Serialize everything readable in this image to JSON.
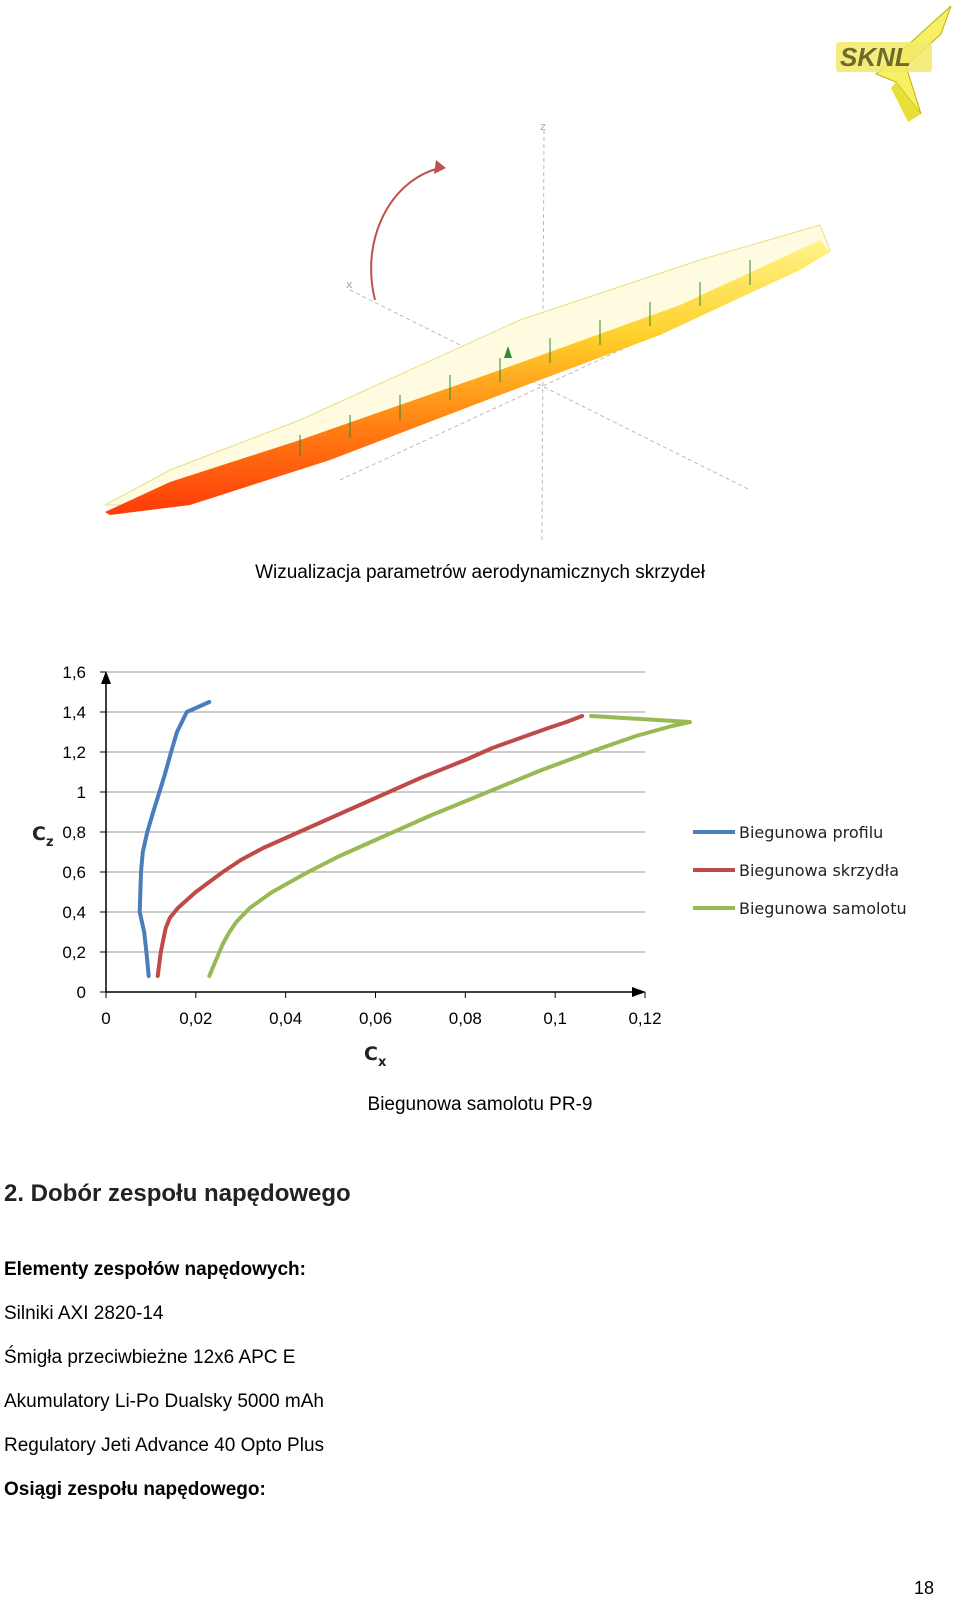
{
  "logo": {
    "text": "SKNL"
  },
  "figure_caption": "Wizualizacja parametrów aerodynamicznych skrzydeł",
  "chart_caption": "Biegunowa samolotu PR-9",
  "chart_data": {
    "type": "line",
    "title": "Biegunowa samolotu PR-9",
    "xlabel": "C",
    "xlabel_sub": "x",
    "ylabel": "C",
    "ylabel_sub": "z",
    "xlim": [
      0,
      0.12
    ],
    "ylim": [
      0,
      1.6
    ],
    "xticks": [
      0,
      0.02,
      0.04,
      0.06,
      0.08,
      0.1,
      0.12
    ],
    "xtick_labels": [
      "0",
      "0,02",
      "0,04",
      "0,06",
      "0,08",
      "0,1",
      "0,12"
    ],
    "yticks": [
      0,
      0.2,
      0.4,
      0.6,
      0.8,
      1.0,
      1.2,
      1.4,
      1.6
    ],
    "ytick_labels": [
      "0",
      "0,2",
      "0,4",
      "0,6",
      "0,8",
      "1",
      "1,2",
      "1,4",
      "1,6"
    ],
    "grid": true,
    "legend_position": "right",
    "series": [
      {
        "name": "Biegunowa profilu",
        "color": "#4a7ebb",
        "points": [
          [
            0.0095,
            0.08
          ],
          [
            0.009,
            0.2
          ],
          [
            0.0085,
            0.3
          ],
          [
            0.0075,
            0.4
          ],
          [
            0.0078,
            0.6
          ],
          [
            0.0082,
            0.7
          ],
          [
            0.0092,
            0.8
          ],
          [
            0.0105,
            0.9
          ],
          [
            0.013,
            1.08
          ],
          [
            0.0145,
            1.2
          ],
          [
            0.0158,
            1.3
          ],
          [
            0.018,
            1.4
          ],
          [
            0.023,
            1.45
          ]
        ]
      },
      {
        "name": "Biegunowa skrzydła",
        "color": "#be4b48",
        "points": [
          [
            0.0115,
            0.08
          ],
          [
            0.0122,
            0.2
          ],
          [
            0.0133,
            0.32
          ],
          [
            0.0142,
            0.37
          ],
          [
            0.016,
            0.42
          ],
          [
            0.02,
            0.5
          ],
          [
            0.026,
            0.6
          ],
          [
            0.03,
            0.66
          ],
          [
            0.035,
            0.72
          ],
          [
            0.045,
            0.82
          ],
          [
            0.06,
            0.97
          ],
          [
            0.07,
            1.07
          ],
          [
            0.08,
            1.16
          ],
          [
            0.086,
            1.22
          ],
          [
            0.0985,
            1.32
          ],
          [
            0.1025,
            1.35
          ],
          [
            0.106,
            1.38
          ]
        ]
      },
      {
        "name": "Biegunowa samolotu",
        "color": "#98b954",
        "points": [
          [
            0.023,
            0.08
          ],
          [
            0.0245,
            0.16
          ],
          [
            0.026,
            0.24
          ],
          [
            0.0275,
            0.3
          ],
          [
            0.029,
            0.35
          ],
          [
            0.032,
            0.42
          ],
          [
            0.037,
            0.5
          ],
          [
            0.045,
            0.6
          ],
          [
            0.052,
            0.68
          ],
          [
            0.06,
            0.76
          ],
          [
            0.072,
            0.88
          ],
          [
            0.085,
            1.0
          ],
          [
            0.097,
            1.11
          ],
          [
            0.109,
            1.21
          ],
          [
            0.118,
            1.28
          ],
          [
            0.126,
            1.33
          ],
          [
            0.13,
            1.35
          ],
          [
            0.108,
            1.38
          ]
        ]
      }
    ]
  },
  "section": {
    "heading": "2. Dobór zespołu napędowego",
    "subheading": "Elementy zespołów napędowych:",
    "items": [
      "Silniki AXI 2820-14",
      "Śmigła przeciwbieżne 12x6 APC E",
      "Akumulatory Li-Po Dualsky 5000 mAh",
      "Regulatory Jeti Advance 40 Opto Plus"
    ],
    "footer_heading": "Osiągi zespołu napędowego:"
  },
  "page_number": "18"
}
